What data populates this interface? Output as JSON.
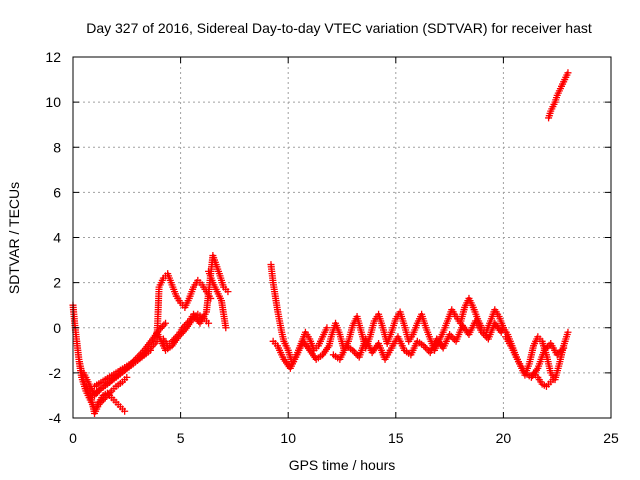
{
  "chart_data": {
    "type": "scatter",
    "title": "Day 327 of 2016, Sidereal Day-to-day VTEC variation (SDTVAR) for receiver hast",
    "xlabel": "GPS time / hours",
    "ylabel": "SDTVAR / TECUs",
    "xlim": [
      0,
      25
    ],
    "ylim": [
      -4,
      12
    ],
    "xticks": [
      0,
      5,
      10,
      15,
      20,
      25
    ],
    "yticks": [
      -4,
      -2,
      0,
      2,
      4,
      6,
      8,
      10,
      12
    ],
    "grid": true,
    "marker": "+",
    "colors": {
      "series": "#ff0000",
      "grid": "#a0a0a0",
      "axis": "#000000"
    },
    "series": [
      {
        "name": "SDTVAR",
        "x": [
          0.0,
          0.1,
          0.2,
          0.3,
          0.4,
          0.6,
          0.8,
          1.0,
          1.2,
          1.4,
          1.6,
          1.8,
          2.0,
          2.2,
          2.4,
          0.3,
          0.5,
          0.8,
          1.0,
          1.2,
          1.5,
          1.8,
          2.0,
          2.3,
          2.5,
          0.5,
          0.8,
          1.0,
          1.3,
          1.6,
          2.0,
          2.4,
          2.8,
          3.2,
          3.6,
          0.9,
          1.3,
          1.7,
          2.1,
          2.5,
          2.9,
          3.3,
          3.7,
          4.0,
          4.3,
          1.0,
          1.5,
          2.0,
          2.5,
          3.0,
          3.5,
          3.9,
          4.0,
          4.2,
          4.4,
          4.6,
          4.8,
          5.0,
          5.2,
          5.4,
          5.6,
          5.8,
          6.0,
          6.2,
          6.4,
          3.9,
          4.1,
          4.3,
          4.6,
          4.9,
          5.2,
          5.5,
          5.8,
          6.1,
          6.3,
          4.2,
          4.4,
          4.6,
          4.9,
          5.1,
          5.4,
          5.6,
          5.9,
          6.2,
          6.5,
          6.8,
          7.0,
          7.2,
          6.3,
          6.5,
          6.7,
          6.9,
          7.1,
          9.2,
          9.3,
          9.4,
          9.5,
          9.6,
          9.7,
          9.8,
          10.0,
          10.2,
          10.4,
          10.6,
          10.8,
          11.0,
          11.2,
          11.4,
          11.6,
          11.8,
          9.3,
          9.5,
          9.8,
          10.1,
          10.4,
          10.7,
          11.0,
          11.3,
          11.6,
          11.9,
          12.0,
          12.2,
          12.4,
          12.6,
          12.8,
          13.0,
          13.2,
          13.4,
          13.6,
          13.8,
          14.0,
          14.2,
          14.4,
          14.6,
          14.8,
          15.0,
          15.2,
          15.4,
          15.6,
          15.8,
          16.0,
          16.2,
          16.4,
          16.6,
          16.8,
          17.0,
          17.2,
          17.4,
          17.6,
          17.8,
          18.0,
          18.2,
          18.4,
          18.6,
          18.8,
          19.0,
          19.2,
          19.4,
          19.6,
          19.8,
          20.0,
          12.1,
          12.4,
          12.7,
          13.0,
          13.3,
          13.6,
          13.9,
          14.2,
          14.5,
          14.8,
          15.1,
          15.4,
          15.7,
          16.0,
          16.3,
          16.6,
          16.9,
          17.2,
          17.5,
          17.8,
          18.1,
          18.4,
          18.7,
          19.0,
          19.3,
          19.6,
          19.9,
          20.0,
          20.2,
          20.4,
          20.6,
          20.8,
          21.0,
          21.2,
          21.4,
          21.6,
          21.8,
          22.0,
          22.2,
          22.4,
          22.6,
          22.8,
          23.0,
          20.1,
          20.4,
          20.7,
          21.0,
          21.3,
          21.6,
          21.9,
          22.2,
          22.5,
          22.8,
          21.4,
          21.6,
          21.8,
          22.0,
          22.2,
          22.4,
          22.1,
          22.2,
          22.3,
          22.4,
          22.5,
          22.6,
          22.7,
          22.8,
          22.9,
          23.0
        ],
        "y": [
          1.0,
          0.0,
          -0.8,
          -1.6,
          -2.2,
          -2.8,
          -3.2,
          -3.6,
          -3.3,
          -3.0,
          -2.9,
          -3.1,
          -3.3,
          -3.5,
          -3.7,
          -1.5,
          -2.4,
          -2.9,
          -3.8,
          -3.4,
          -3.1,
          -2.8,
          -2.6,
          -2.4,
          -2.2,
          -2.0,
          -2.6,
          -3.0,
          -2.7,
          -2.5,
          -2.2,
          -1.9,
          -1.6,
          -1.3,
          -1.0,
          -3.0,
          -2.7,
          -2.4,
          -2.1,
          -1.8,
          -1.4,
          -1.0,
          -0.5,
          -0.1,
          0.2,
          -2.6,
          -2.3,
          -2.0,
          -1.7,
          -1.4,
          -1.0,
          -0.6,
          1.8,
          2.2,
          2.4,
          1.9,
          1.4,
          1.1,
          0.9,
          1.3,
          1.8,
          2.1,
          1.9,
          1.6,
          1.3,
          -0.2,
          -0.6,
          -1.0,
          -0.8,
          -0.4,
          -0.1,
          0.3,
          0.6,
          0.4,
          0.2,
          -0.5,
          -0.8,
          -0.6,
          -0.3,
          0.0,
          0.3,
          0.6,
          0.2,
          0.7,
          3.2,
          2.4,
          1.8,
          1.6,
          2.5,
          2.0,
          1.6,
          1.2,
          0.0,
          2.8,
          2.0,
          1.4,
          0.8,
          0.3,
          -0.2,
          -0.6,
          -1.0,
          -1.6,
          -1.2,
          -0.7,
          -0.2,
          -0.5,
          -1.0,
          -0.8,
          -0.4,
          0.0,
          -0.6,
          -0.8,
          -1.4,
          -1.8,
          -1.2,
          -0.6,
          -1.0,
          -1.4,
          -1.2,
          -0.8,
          -0.4,
          0.2,
          -0.3,
          -1.0,
          -0.6,
          0.1,
          0.5,
          -0.2,
          -0.9,
          -0.4,
          0.3,
          0.6,
          0.0,
          -0.7,
          -0.2,
          0.4,
          0.7,
          0.1,
          -0.6,
          -0.3,
          0.2,
          0.6,
          0.0,
          -0.5,
          -1.0,
          -0.6,
          -0.2,
          0.3,
          0.8,
          0.5,
          0.2,
          0.9,
          1.3,
          0.9,
          0.4,
          0.0,
          -0.2,
          0.3,
          0.8,
          0.5,
          0.0,
          -1.2,
          -1.4,
          -0.8,
          -1.0,
          -1.3,
          -0.5,
          -1.1,
          -0.7,
          -1.4,
          -0.9,
          -0.4,
          -1.0,
          -1.2,
          -0.6,
          -0.8,
          -1.1,
          -0.5,
          -0.9,
          -0.3,
          -0.6,
          0.1,
          -0.3,
          0.3,
          -0.2,
          -0.5,
          0.2,
          -0.2,
          0.0,
          -0.3,
          -0.8,
          -1.3,
          -1.7,
          -2.1,
          -1.6,
          -0.8,
          -0.4,
          -0.6,
          -1.2,
          -2.0,
          -2.3,
          -1.6,
          -0.8,
          -0.2,
          -0.4,
          -0.9,
          -1.5,
          -2.0,
          -2.2,
          -1.8,
          -1.0,
          -0.7,
          -1.2,
          -0.9,
          -2.0,
          -2.2,
          -2.5,
          -2.6,
          -2.4,
          -2.2,
          9.3,
          9.6,
          9.8,
          10.0,
          10.3,
          10.5,
          10.7,
          10.9,
          11.1,
          11.3
        ]
      }
    ]
  }
}
